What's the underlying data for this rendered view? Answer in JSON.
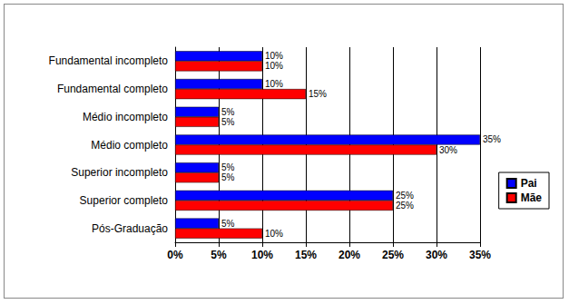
{
  "chart_data": {
    "type": "bar",
    "orientation": "horizontal",
    "categories": [
      "Fundamental incompleto",
      "Fundamental completo",
      "Médio incompleto",
      "Médio completo",
      "Superior incompleto",
      "Superior completo",
      "Pós-Graduação"
    ],
    "series": [
      {
        "name": "Pai",
        "color": "#0000ff",
        "values": [
          10,
          10,
          5,
          35,
          5,
          25,
          5
        ],
        "value_labels": [
          "10%",
          "10%",
          "5%",
          "35%",
          "5%",
          "25%",
          "5%"
        ]
      },
      {
        "name": "Mãe",
        "color": "#ff0000",
        "values": [
          10,
          15,
          5,
          30,
          5,
          25,
          10
        ],
        "value_labels": [
          "10%",
          "15%",
          "5%",
          "30%",
          "5%",
          "25%",
          "10%"
        ]
      }
    ],
    "xlim": [
      0,
      35
    ],
    "xticks": [
      {
        "value": 0,
        "label": "0%"
      },
      {
        "value": 5,
        "label": "5%"
      },
      {
        "value": 10,
        "label": "10%"
      },
      {
        "value": 15,
        "label": "15%"
      },
      {
        "value": 20,
        "label": "20%"
      },
      {
        "value": 25,
        "label": "25%"
      },
      {
        "value": 30,
        "label": "30%"
      },
      {
        "value": 35,
        "label": "35%"
      }
    ],
    "grid": true,
    "legend": "right",
    "data_labels": true
  }
}
